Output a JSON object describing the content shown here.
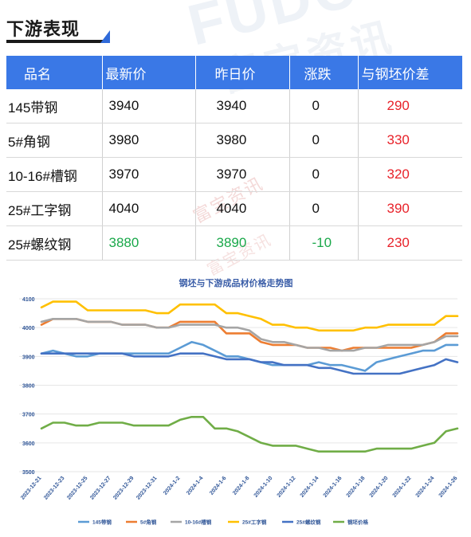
{
  "header": {
    "title": "下游表现"
  },
  "watermark": {
    "brand_en": "FUDC",
    "brand_cn": "富宝资讯"
  },
  "table": {
    "columns": [
      "品名",
      "最新价",
      "昨日价",
      "涨跌",
      "与钢坯价差"
    ],
    "rows": [
      {
        "name": "145带钢",
        "latest": "3940",
        "prev": "3940",
        "change": "0",
        "spread": "290",
        "trend": "flat"
      },
      {
        "name": "5#角钢",
        "latest": "3980",
        "prev": "3980",
        "change": "0",
        "spread": "330",
        "trend": "flat"
      },
      {
        "name": "10-16#槽钢",
        "latest": "3970",
        "prev": "3970",
        "change": "0",
        "spread": "320",
        "trend": "flat"
      },
      {
        "name": "25#工字钢",
        "latest": "4040",
        "prev": "4040",
        "change": "0",
        "spread": "390",
        "trend": "flat"
      },
      {
        "name": "25#螺纹钢",
        "latest": "3880",
        "prev": "3890",
        "change": "-10",
        "spread": "230",
        "trend": "down"
      }
    ]
  },
  "colors": {
    "header_bg": "#3a78e6",
    "up_red": "#e8222a",
    "down_green": "#1aa84a",
    "title_accent": "#2f6ad9"
  },
  "chart_data": {
    "type": "line",
    "title": "钢坯与下游成品材价格走势图",
    "xlabel": "",
    "ylabel": "",
    "ylim": [
      3500,
      4100
    ],
    "yticks": [
      3500,
      3600,
      3700,
      3800,
      3900,
      4000,
      4100
    ],
    "x_tick_labels": [
      "2023-12-21",
      "2023-12-23",
      "2023-12-25",
      "2023-12-27",
      "2023-12-29",
      "2023-12-31",
      "2024-1-2",
      "2024-1-4",
      "2024-1-6",
      "2024-1-8",
      "2024-1-10",
      "2024-1-12",
      "2024-1-14",
      "2024-1-16",
      "2024-1-18",
      "2024-1-20",
      "2024-1-22",
      "2024-1-24",
      "2024-1-26"
    ],
    "x": [
      "2023-12-21",
      "2023-12-22",
      "2023-12-23",
      "2023-12-24",
      "2023-12-25",
      "2023-12-26",
      "2023-12-27",
      "2023-12-28",
      "2023-12-29",
      "2023-12-30",
      "2023-12-31",
      "2024-1-1",
      "2024-1-2",
      "2024-1-3",
      "2024-1-4",
      "2024-1-5",
      "2024-1-6",
      "2024-1-7",
      "2024-1-8",
      "2024-1-9",
      "2024-1-10",
      "2024-1-11",
      "2024-1-12",
      "2024-1-13",
      "2024-1-14",
      "2024-1-15",
      "2024-1-16",
      "2024-1-17",
      "2024-1-18",
      "2024-1-19",
      "2024-1-20",
      "2024-1-21",
      "2024-1-22",
      "2024-1-23",
      "2024-1-24",
      "2024-1-25",
      "2024-1-26"
    ],
    "grid": true,
    "legend_position": "bottom",
    "series": [
      {
        "name": "145带钢",
        "color": "#5b9bd5",
        "values": [
          3910,
          3920,
          3910,
          3900,
          3900,
          3910,
          3910,
          3910,
          3910,
          3910,
          3910,
          3910,
          3930,
          3950,
          3940,
          3920,
          3900,
          3900,
          3890,
          3880,
          3870,
          3870,
          3870,
          3870,
          3880,
          3870,
          3870,
          3860,
          3850,
          3880,
          3890,
          3900,
          3910,
          3920,
          3920,
          3940,
          3940
        ]
      },
      {
        "name": "5#角钢",
        "color": "#ed7d31",
        "values": [
          4010,
          4030,
          4030,
          4030,
          4020,
          4020,
          4020,
          4010,
          4010,
          4010,
          4000,
          4000,
          4020,
          4020,
          4020,
          4020,
          3980,
          3980,
          3980,
          3950,
          3940,
          3940,
          3940,
          3930,
          3930,
          3930,
          3920,
          3930,
          3930,
          3930,
          3930,
          3930,
          3930,
          3940,
          3950,
          3980,
          3980
        ]
      },
      {
        "name": "10-16#槽钢",
        "color": "#a5a5a5",
        "values": [
          4020,
          4030,
          4030,
          4030,
          4020,
          4020,
          4020,
          4010,
          4010,
          4010,
          4000,
          4000,
          4010,
          4010,
          4010,
          4010,
          4000,
          4000,
          3990,
          3960,
          3950,
          3950,
          3940,
          3930,
          3930,
          3920,
          3920,
          3920,
          3930,
          3930,
          3940,
          3940,
          3940,
          3940,
          3950,
          3970,
          3970
        ]
      },
      {
        "name": "25#工字钢",
        "color": "#ffc000",
        "values": [
          4070,
          4090,
          4090,
          4090,
          4060,
          4060,
          4060,
          4060,
          4060,
          4060,
          4050,
          4050,
          4080,
          4080,
          4080,
          4080,
          4050,
          4050,
          4040,
          4030,
          4010,
          4010,
          4000,
          4000,
          3990,
          3990,
          3990,
          3990,
          4000,
          4000,
          4010,
          4010,
          4010,
          4010,
          4010,
          4040,
          4040
        ]
      },
      {
        "name": "25#螺纹钢",
        "color": "#4472c4",
        "values": [
          3910,
          3910,
          3910,
          3910,
          3910,
          3910,
          3910,
          3910,
          3900,
          3900,
          3900,
          3900,
          3910,
          3910,
          3910,
          3900,
          3890,
          3890,
          3890,
          3880,
          3880,
          3870,
          3870,
          3870,
          3860,
          3860,
          3850,
          3840,
          3840,
          3840,
          3840,
          3840,
          3850,
          3860,
          3870,
          3890,
          3880
        ]
      },
      {
        "name": "钢坯价格",
        "color": "#70ad47",
        "values": [
          3650,
          3670,
          3670,
          3660,
          3660,
          3670,
          3670,
          3670,
          3660,
          3660,
          3660,
          3660,
          3680,
          3690,
          3690,
          3650,
          3650,
          3640,
          3620,
          3600,
          3590,
          3590,
          3590,
          3580,
          3570,
          3570,
          3570,
          3570,
          3570,
          3580,
          3580,
          3580,
          3580,
          3590,
          3600,
          3640,
          3650
        ]
      }
    ]
  }
}
